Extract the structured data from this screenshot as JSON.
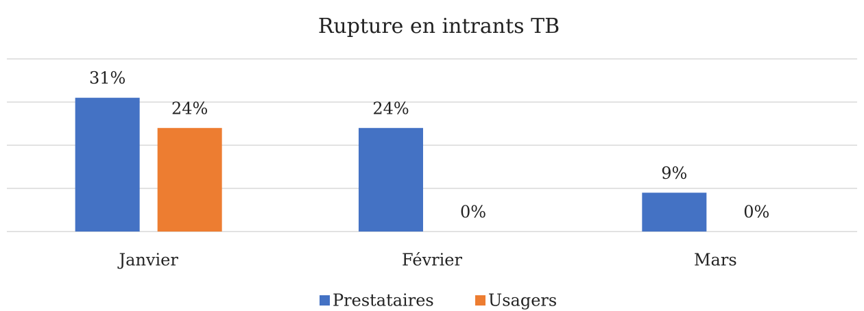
{
  "chart_data": {
    "type": "bar",
    "title": "Rupture en intrants TB",
    "categories": [
      "Janvier",
      "Février",
      "Mars"
    ],
    "series": [
      {
        "name": "Prestataires",
        "color": "#4472c4",
        "values": [
          31,
          24,
          9
        ],
        "value_labels": [
          "31%",
          "24%",
          "9%"
        ]
      },
      {
        "name": "Usagers",
        "color": "#ed7d31",
        "values": [
          24,
          0,
          0
        ],
        "value_labels": [
          "24%",
          "0%",
          "0%"
        ]
      }
    ],
    "ylim": [
      0,
      40
    ],
    "yticks": [
      0,
      10,
      20,
      30,
      40
    ],
    "grid": true,
    "legend": "bottom"
  }
}
